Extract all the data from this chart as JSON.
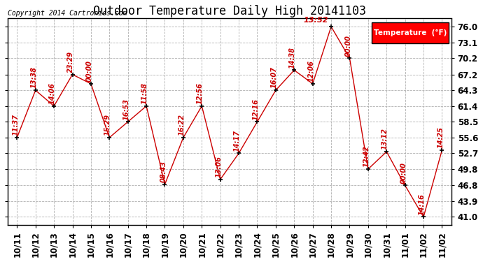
{
  "title": "Outdoor Temperature Daily High 20141103",
  "copyright": "Copyright 2014 Cartronics.com",
  "legend_label": "Temperature  (°F)",
  "background_color": "#ffffff",
  "plot_bg_color": "#ffffff",
  "line_color": "#cc0000",
  "grid_color": "#b0b0b0",
  "dates": [
    "10/11",
    "10/12",
    "10/13",
    "10/14",
    "10/15",
    "10/16",
    "10/17",
    "10/18",
    "10/19",
    "10/20",
    "10/21",
    "10/22",
    "10/23",
    "10/24",
    "10/25",
    "10/26",
    "10/27",
    "10/28",
    "10/29",
    "10/30",
    "10/31",
    "11/01",
    "11/02",
    "11/02"
  ],
  "temps": [
    55.6,
    64.3,
    61.4,
    67.2,
    65.5,
    55.6,
    58.5,
    61.4,
    47.0,
    55.6,
    61.4,
    47.9,
    52.7,
    58.5,
    64.3,
    68.0,
    65.5,
    76.0,
    70.2,
    49.8,
    53.0,
    46.8,
    41.0,
    53.3
  ],
  "time_labels": [
    "11:37",
    "13:38",
    "14:06",
    "23:29",
    "00:00",
    "15:29",
    "16:53",
    "11:58",
    "08:43",
    "16:22",
    "12:56",
    "13:06",
    "14:17",
    "12:16",
    "16:07",
    "14:38",
    "12:06",
    "13:52",
    "00:00",
    "12:42",
    "13:12",
    "00:00",
    "14:16",
    "14:25"
  ],
  "yticks": [
    41.0,
    43.9,
    46.8,
    49.8,
    52.7,
    55.6,
    58.5,
    61.4,
    64.3,
    67.2,
    70.2,
    73.1,
    76.0
  ],
  "ylim": [
    39.5,
    77.5
  ],
  "title_fontsize": 12,
  "label_fontsize": 7,
  "tick_fontsize": 8.5,
  "copyright_fontsize": 7
}
